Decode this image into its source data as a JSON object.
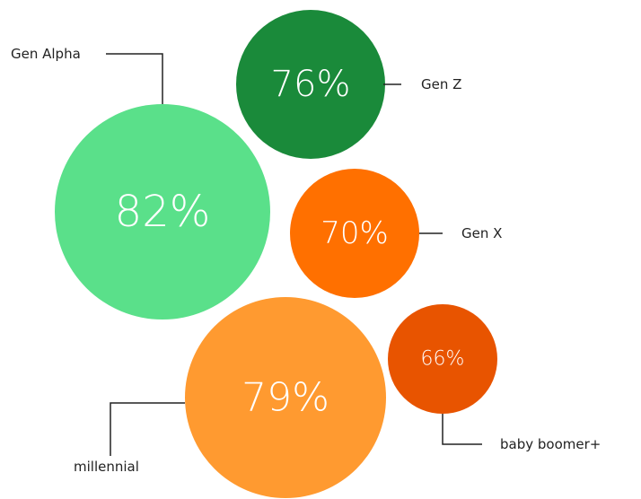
{
  "chart_data": {
    "type": "bubble",
    "categories": [
      "Gen Alpha",
      "Gen Z",
      "Gen X",
      "millennial",
      "baby boomer+"
    ],
    "values": [
      82,
      76,
      70,
      79,
      66
    ],
    "value_labels": [
      "82%",
      "76%",
      "70%",
      "79%",
      "66%"
    ],
    "colors": [
      "#5ae08a",
      "#1a8a3a",
      "#ff7000",
      "#ff9a30",
      "#e85400"
    ]
  }
}
